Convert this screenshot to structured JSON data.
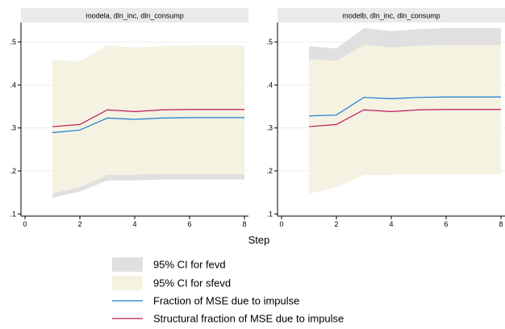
{
  "chart_data": {
    "type": "line",
    "xlabel": "Step",
    "x": [
      1,
      2,
      3,
      4,
      5,
      6,
      7,
      8
    ],
    "xticks": [
      0,
      2,
      4,
      6,
      8
    ],
    "xlim": [
      0,
      8
    ],
    "yticks": [
      0.1,
      0.2,
      0.3,
      0.4,
      0.5
    ],
    "ytick_labels": [
      ".1",
      ".2",
      ".3",
      ".4",
      ".5"
    ],
    "ylim": [
      0.095,
      0.545
    ],
    "grid": "horizontal",
    "legend_position": "bottom",
    "colors": {
      "fevd_ci": "#e0e0e0",
      "sfevd_ci": "#f5f2e1",
      "fraction": "#1a7cd6",
      "structural": "#c0185a",
      "strip_bg": "#eaeaea",
      "grid": "#ececec"
    },
    "legend": [
      {
        "key": "fevd_ci",
        "label": "95% CI for fevd",
        "kind": "area"
      },
      {
        "key": "sfevd_ci",
        "label": "95% CI for sfevd",
        "kind": "area"
      },
      {
        "key": "fraction",
        "label": "Fraction of MSE due to impulse",
        "kind": "line"
      },
      {
        "key": "structural",
        "label": "Structural fraction of MSE due to impulse",
        "kind": "line"
      }
    ],
    "panels": [
      {
        "title": "modela, dln_inc, dln_consump",
        "fevd_ci_lower": [
          0.138,
          0.152,
          0.178,
          0.178,
          0.18,
          0.18,
          0.18,
          0.18
        ],
        "fevd_ci_upper": [
          0.458,
          0.455,
          0.492,
          0.486,
          0.49,
          0.492,
          0.492,
          0.492
        ],
        "sfevd_ci_lower": [
          0.148,
          0.162,
          0.191,
          0.191,
          0.193,
          0.193,
          0.193,
          0.193
        ],
        "sfevd_ci_upper": [
          0.458,
          0.455,
          0.492,
          0.486,
          0.49,
          0.492,
          0.492,
          0.492
        ],
        "fraction": [
          0.289,
          0.295,
          0.323,
          0.32,
          0.323,
          0.324,
          0.324,
          0.324
        ],
        "structural": [
          0.303,
          0.308,
          0.342,
          0.338,
          0.342,
          0.343,
          0.343,
          0.343
        ]
      },
      {
        "title": "modelb, dln_inc, dln_consump",
        "fevd_ci_lower": [
          0.148,
          0.162,
          0.191,
          0.191,
          0.193,
          0.193,
          0.193,
          0.193
        ],
        "fevd_ci_upper": [
          0.49,
          0.485,
          0.532,
          0.525,
          0.53,
          0.532,
          0.532,
          0.532
        ],
        "sfevd_ci_lower": [
          0.148,
          0.162,
          0.191,
          0.191,
          0.193,
          0.193,
          0.193,
          0.193
        ],
        "sfevd_ci_upper": [
          0.46,
          0.456,
          0.493,
          0.487,
          0.491,
          0.493,
          0.493,
          0.493
        ],
        "fraction": [
          0.328,
          0.33,
          0.371,
          0.368,
          0.371,
          0.372,
          0.372,
          0.372
        ],
        "structural": [
          0.303,
          0.308,
          0.342,
          0.338,
          0.342,
          0.343,
          0.343,
          0.343
        ]
      }
    ]
  }
}
